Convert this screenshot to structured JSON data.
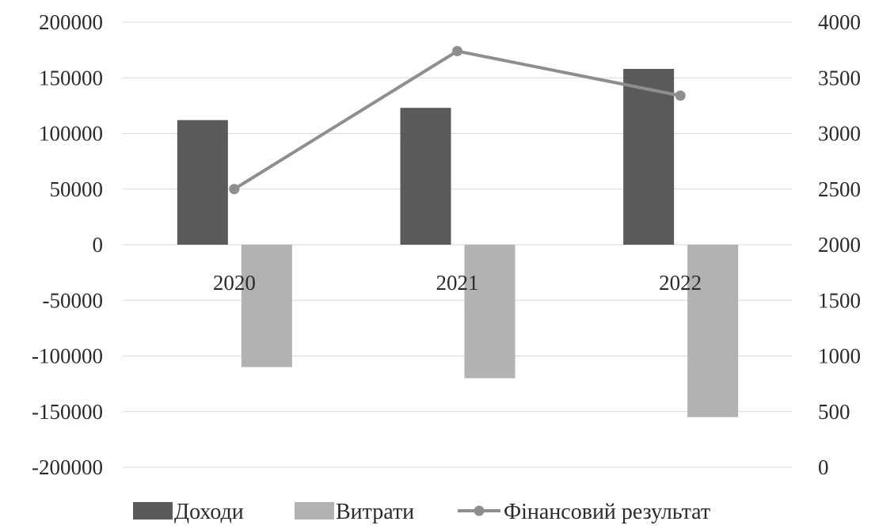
{
  "chart_data": {
    "type": "bar",
    "categories": [
      "2020",
      "2021",
      "2022"
    ],
    "series": [
      {
        "name": "Доходи",
        "type": "bar",
        "axis": "left",
        "color": "#5a5a5a",
        "values": [
          112000,
          123000,
          158000
        ]
      },
      {
        "name": "Витрати",
        "type": "bar",
        "axis": "left",
        "color": "#b2b2b2",
        "values": [
          -110000,
          -120000,
          -155000
        ]
      },
      {
        "name": "Фінансовий результат",
        "type": "line",
        "axis": "right",
        "color": "#8e8e8e",
        "values": [
          2500,
          3740,
          3340
        ]
      }
    ],
    "left_axis": {
      "ylim": [
        -200000,
        200000
      ],
      "ticks": [
        "200000",
        "150000",
        "100000",
        "50000",
        "0",
        "-50000",
        "-100000",
        "-150000",
        "-200000"
      ]
    },
    "right_axis": {
      "ylim": [
        0,
        4000
      ],
      "ticks": [
        "4000",
        "3500",
        "3000",
        "2500",
        "2000",
        "1500",
        "1000",
        "500",
        "0"
      ]
    },
    "grid": true,
    "legend_position": "bottom"
  }
}
